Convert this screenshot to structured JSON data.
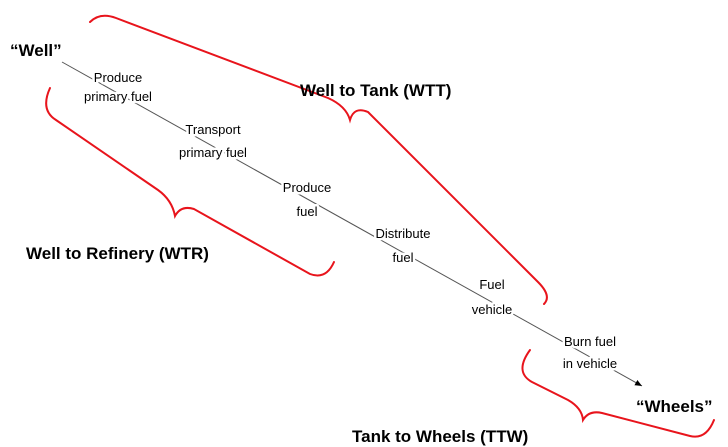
{
  "start": "“Well”",
  "end": "“Wheels”",
  "steps": [
    {
      "lines": [
        "Produce",
        "primary fuel"
      ]
    },
    {
      "lines": [
        "Transport",
        "primary fuel"
      ]
    },
    {
      "lines": [
        "Produce",
        "fuel"
      ]
    },
    {
      "lines": [
        "Distribute",
        "fuel"
      ]
    },
    {
      "lines": [
        "Fuel",
        "vehicle"
      ]
    },
    {
      "lines": [
        "Burn fuel",
        "in vehicle"
      ]
    }
  ],
  "braces": {
    "wtt": "Well to Tank (WTT)",
    "wtr": "Well to Refinery (WTR)",
    "ttw": "Tank to Wheels (TTW)"
  }
}
